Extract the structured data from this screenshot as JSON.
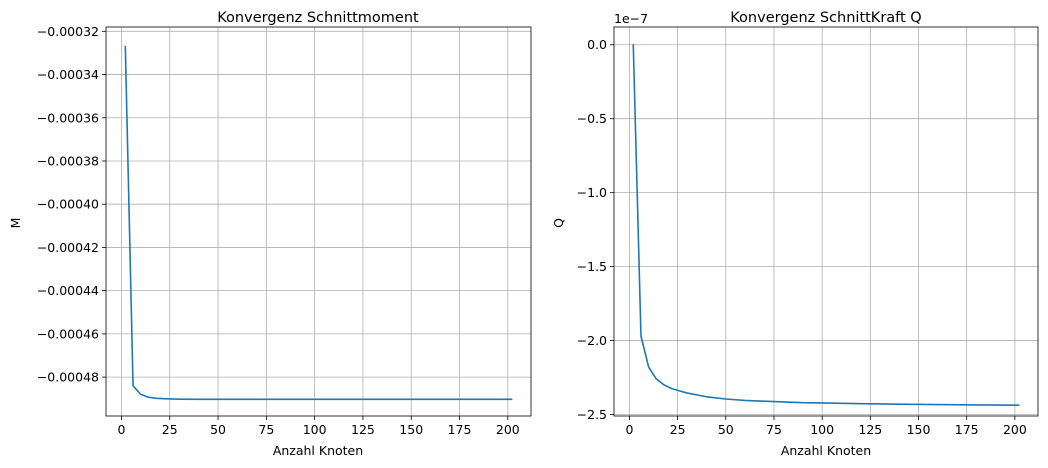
{
  "colors": {
    "series": "#1f77b4",
    "grid": "#b0b0b0"
  },
  "chart_data": [
    {
      "type": "line",
      "title": "Konvergenz Schnittmoment",
      "xlabel": "Anzahl Knoten",
      "ylabel": "M",
      "offset_label": "",
      "grid": true,
      "xlim": [
        -8,
        212
      ],
      "ylim": [
        -0.000498,
        -0.000318
      ],
      "xticks": [
        0,
        25,
        50,
        75,
        100,
        125,
        150,
        175,
        200
      ],
      "xtick_labels": [
        "0",
        "25",
        "50",
        "75",
        "100",
        "125",
        "150",
        "175",
        "200"
      ],
      "yticks": [
        -0.00048,
        -0.00046,
        -0.00044,
        -0.00042,
        -0.0004,
        -0.00038,
        -0.00036,
        -0.00034,
        -0.00032
      ],
      "ytick_labels": [
        "−0.00048",
        "−0.00046",
        "−0.00044",
        "−0.00042",
        "−0.00040",
        "−0.00038",
        "−0.00036",
        "−0.00034",
        "−0.00032"
      ],
      "series": [
        {
          "x": [
            2,
            6,
            10,
            14,
            18,
            22,
            26,
            30,
            40,
            50,
            60,
            70,
            80,
            90,
            100,
            110,
            120,
            130,
            140,
            150,
            160,
            170,
            180,
            190,
            202
          ],
          "values": [
            -0.000327,
            -0.000484,
            -0.000488,
            -0.0004893,
            -0.0004898,
            -0.00049,
            -0.0004901,
            -0.0004902,
            -0.0004903,
            -0.0004903,
            -0.0004903,
            -0.0004903,
            -0.0004903,
            -0.0004903,
            -0.0004903,
            -0.0004903,
            -0.0004903,
            -0.0004903,
            -0.0004903,
            -0.0004903,
            -0.0004903,
            -0.0004903,
            -0.0004903,
            -0.0004903,
            -0.0004903
          ]
        }
      ]
    },
    {
      "type": "line",
      "title": "Konvergenz SchnittKraft Q",
      "xlabel": "Anzahl Knoten",
      "ylabel": "Q",
      "offset_label": "1e−7",
      "grid": true,
      "xlim": [
        -8,
        212
      ],
      "ylim": [
        -2.51,
        0.12
      ],
      "xticks": [
        0,
        25,
        50,
        75,
        100,
        125,
        150,
        175,
        200
      ],
      "xtick_labels": [
        "0",
        "25",
        "50",
        "75",
        "100",
        "125",
        "150",
        "175",
        "200"
      ],
      "yticks": [
        -2.5,
        -2.0,
        -1.5,
        -1.0,
        -0.5,
        0.0
      ],
      "ytick_labels": [
        "−2.5",
        "−2.0",
        "−1.5",
        "−1.0",
        "−0.5",
        "0.0"
      ],
      "series": [
        {
          "x": [
            2,
            6,
            10,
            14,
            18,
            22,
            26,
            30,
            40,
            50,
            60,
            70,
            80,
            90,
            100,
            120,
            140,
            160,
            180,
            202
          ],
          "values": [
            0.0,
            -1.97,
            -2.18,
            -2.26,
            -2.3,
            -2.325,
            -2.34,
            -2.355,
            -2.38,
            -2.395,
            -2.405,
            -2.41,
            -2.415,
            -2.42,
            -2.422,
            -2.427,
            -2.43,
            -2.433,
            -2.435,
            -2.437
          ]
        }
      ]
    }
  ]
}
